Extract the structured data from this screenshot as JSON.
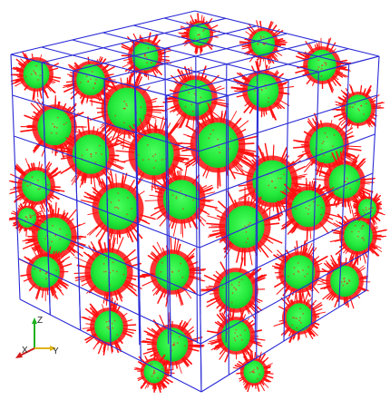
{
  "viewport": {
    "background": "#ffffff"
  },
  "colors": {
    "grid_lines": "#2a2ad6",
    "particle_shell": "#ff1010",
    "particle_core": "#22e83a",
    "axis_z": "#1db01d",
    "axis_x": "#d11a1a",
    "axis_y": "#f2c21a"
  },
  "orientation_axes": {
    "z_label": "Z",
    "x_label": "X",
    "y_label": "Y"
  },
  "icons": {
    "orientation_axes": "orientation-axes-icon"
  }
}
